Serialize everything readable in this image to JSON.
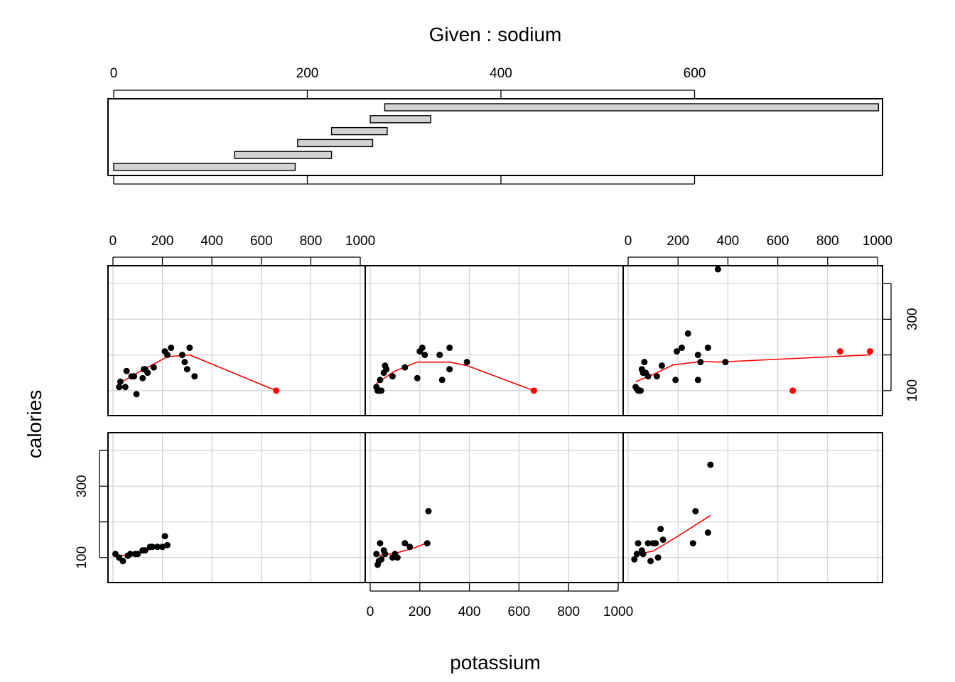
{
  "chart_data": {
    "type": "scatter",
    "subtype": "coplot",
    "given": {
      "title": "Given : sodium",
      "ticks": [
        0,
        200,
        400,
        600
      ],
      "range": [
        0,
        795
      ],
      "intervals": [
        [
          0,
          187.5
        ],
        [
          125,
          225
        ],
        [
          190,
          267.5
        ],
        [
          225,
          282.5
        ],
        [
          265,
          327.5
        ],
        [
          280,
          790
        ]
      ],
      "bar_fill": "#d3d3d3"
    },
    "xlabel": "potassium",
    "ylabel": "calories",
    "x_ticks": [
      0,
      200,
      400,
      600,
      800,
      1000
    ],
    "y_ticks": [
      100,
      300
    ],
    "xlim": [
      -20,
      1020
    ],
    "ylim": [
      30,
      450
    ],
    "grid": true,
    "grid_x": [
      0,
      200,
      400,
      600,
      800,
      1000
    ],
    "grid_y": [
      100,
      200,
      300,
      400
    ],
    "colors": {
      "points": "#000000",
      "outliers": "#ff0000",
      "smooth": "#ff0000",
      "grid": "#d3d3d3"
    },
    "panels": [
      {
        "interval": 1,
        "points": [
          [
            10,
            110
          ],
          [
            25,
            100
          ],
          [
            40,
            90
          ],
          [
            60,
            105
          ],
          [
            70,
            110
          ],
          [
            90,
            110
          ],
          [
            100,
            110
          ],
          [
            120,
            120
          ],
          [
            130,
            120
          ],
          [
            150,
            130
          ],
          [
            160,
            130
          ],
          [
            180,
            130
          ],
          [
            200,
            130
          ],
          [
            210,
            160
          ],
          [
            220,
            135
          ]
        ],
        "outliers": [],
        "smooth": [
          [
            10,
            105
          ],
          [
            60,
            107
          ],
          [
            110,
            114
          ],
          [
            160,
            125
          ],
          [
            220,
            135
          ]
        ]
      },
      {
        "interval": 2,
        "points": [
          [
            25,
            110
          ],
          [
            30,
            80
          ],
          [
            35,
            90
          ],
          [
            40,
            140
          ],
          [
            45,
            95
          ],
          [
            55,
            120
          ],
          [
            60,
            110
          ],
          [
            90,
            100
          ],
          [
            100,
            110
          ],
          [
            110,
            100
          ],
          [
            140,
            140
          ],
          [
            160,
            130
          ],
          [
            230,
            140
          ],
          [
            235,
            230
          ]
        ],
        "outliers": [],
        "smooth": [
          [
            25,
            105
          ],
          [
            100,
            112
          ],
          [
            170,
            125
          ],
          [
            235,
            143
          ]
        ]
      },
      {
        "interval": 3,
        "points": [
          [
            25,
            95
          ],
          [
            35,
            110
          ],
          [
            40,
            140
          ],
          [
            55,
            120
          ],
          [
            60,
            110
          ],
          [
            80,
            140
          ],
          [
            90,
            90
          ],
          [
            100,
            140
          ],
          [
            110,
            140
          ],
          [
            120,
            100
          ],
          [
            130,
            180
          ],
          [
            140,
            150
          ],
          [
            260,
            140
          ],
          [
            270,
            230
          ],
          [
            320,
            170
          ],
          [
            330,
            360
          ]
        ],
        "outliers": [],
        "smooth": [
          [
            25,
            108
          ],
          [
            100,
            118
          ],
          [
            200,
            160
          ],
          [
            330,
            218
          ]
        ]
      },
      {
        "interval": 4,
        "points": [
          [
            25,
            110
          ],
          [
            30,
            125
          ],
          [
            50,
            110
          ],
          [
            55,
            155
          ],
          [
            75,
            140
          ],
          [
            85,
            140
          ],
          [
            95,
            90
          ],
          [
            120,
            135
          ],
          [
            125,
            160
          ],
          [
            130,
            160
          ],
          [
            140,
            150
          ],
          [
            165,
            165
          ],
          [
            210,
            210
          ],
          [
            220,
            200
          ],
          [
            235,
            220
          ],
          [
            280,
            200
          ],
          [
            290,
            180
          ],
          [
            300,
            160
          ],
          [
            310,
            220
          ],
          [
            330,
            140
          ]
        ],
        "outliers": [
          [
            660,
            100
          ]
        ],
        "smooth": [
          [
            25,
            120
          ],
          [
            100,
            150
          ],
          [
            220,
            195
          ],
          [
            310,
            200
          ],
          [
            660,
            100
          ]
        ]
      },
      {
        "interval": 5,
        "points": [
          [
            25,
            110
          ],
          [
            30,
            100
          ],
          [
            35,
            100
          ],
          [
            40,
            130
          ],
          [
            45,
            100
          ],
          [
            55,
            150
          ],
          [
            60,
            170
          ],
          [
            65,
            160
          ],
          [
            90,
            140
          ],
          [
            140,
            165
          ],
          [
            190,
            135
          ],
          [
            200,
            210
          ],
          [
            210,
            220
          ],
          [
            220,
            200
          ],
          [
            280,
            200
          ],
          [
            290,
            130
          ],
          [
            320,
            160
          ],
          [
            320,
            220
          ],
          [
            390,
            180
          ]
        ],
        "outliers": [
          [
            660,
            100
          ]
        ],
        "smooth": [
          [
            25,
            120
          ],
          [
            100,
            155
          ],
          [
            190,
            180
          ],
          [
            320,
            180
          ],
          [
            390,
            170
          ],
          [
            660,
            100
          ]
        ]
      },
      {
        "interval": 6,
        "points": [
          [
            30,
            110
          ],
          [
            35,
            105
          ],
          [
            40,
            100
          ],
          [
            45,
            100
          ],
          [
            50,
            100
          ],
          [
            55,
            160
          ],
          [
            60,
            150
          ],
          [
            65,
            180
          ],
          [
            70,
            150
          ],
          [
            80,
            140
          ],
          [
            115,
            140
          ],
          [
            135,
            170
          ],
          [
            190,
            130
          ],
          [
            195,
            210
          ],
          [
            215,
            220
          ],
          [
            240,
            260
          ],
          [
            280,
            130
          ],
          [
            280,
            200
          ],
          [
            290,
            180
          ],
          [
            320,
            220
          ],
          [
            360,
            440
          ],
          [
            390,
            180
          ]
        ],
        "outliers": [
          [
            660,
            100
          ],
          [
            850,
            210
          ],
          [
            970,
            210
          ]
        ],
        "smooth": [
          [
            30,
            125
          ],
          [
            100,
            145
          ],
          [
            180,
            172
          ],
          [
            300,
            182
          ],
          [
            360,
            180
          ],
          [
            970,
            200
          ]
        ]
      }
    ]
  }
}
